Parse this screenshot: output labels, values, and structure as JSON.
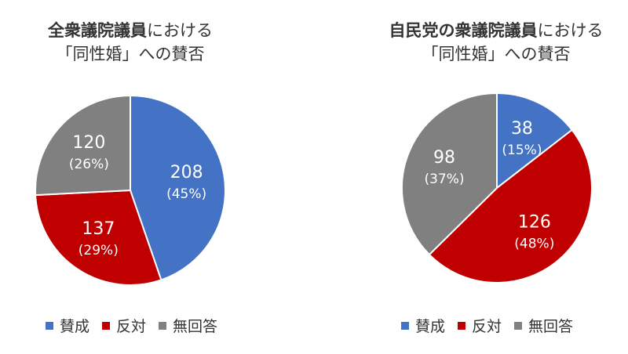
{
  "colors": {
    "yes": "#4472c4",
    "no": "#c00000",
    "none": "#808080"
  },
  "chart_data": [
    {
      "type": "pie",
      "title_bold": "全衆議院議員",
      "title_rest": "における",
      "title_line2": "「同性婚」への賛否",
      "categories": [
        "賛成",
        "反対",
        "無回答"
      ],
      "values": [
        208,
        137,
        120
      ],
      "percent_labels": [
        "(45%)",
        "(29%)",
        "(26%)"
      ],
      "legend": [
        "賛成",
        "反対",
        "無回答"
      ],
      "legend_position": "bottom"
    },
    {
      "type": "pie",
      "title_bold": "自民党の衆議院議員",
      "title_rest": "における",
      "title_line2": "「同性婚」への賛否",
      "categories": [
        "賛成",
        "反対",
        "無回答"
      ],
      "values": [
        38,
        126,
        98
      ],
      "percent_labels": [
        "(15%)",
        "(48%)",
        "(37%)"
      ],
      "legend": [
        "賛成",
        "反対",
        "無回答"
      ],
      "legend_position": "bottom"
    }
  ]
}
